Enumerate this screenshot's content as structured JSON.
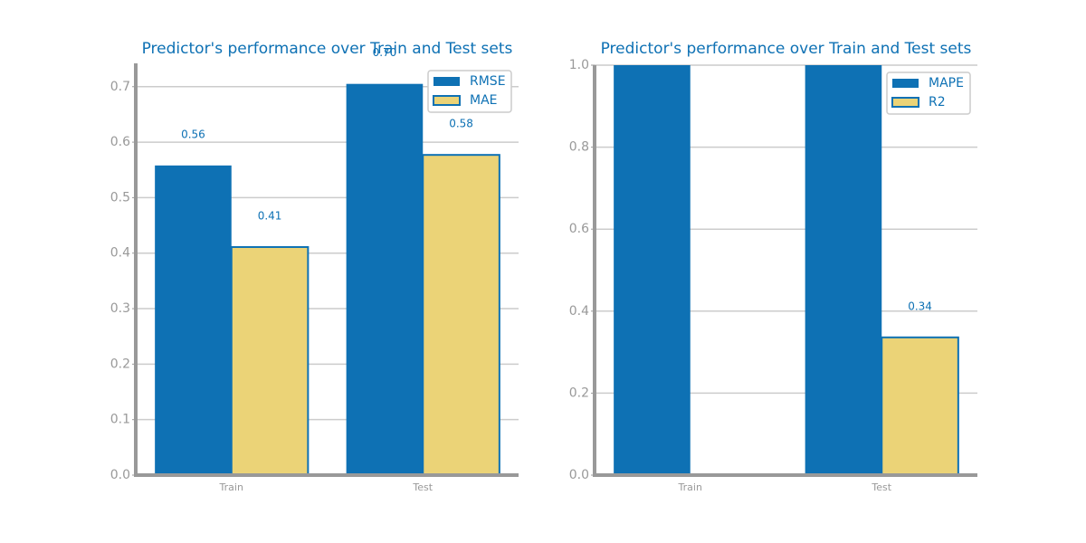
{
  "chart_data": [
    {
      "type": "bar",
      "title": "Predictor's performance over Train and Test sets",
      "categories": [
        "Train",
        "Test"
      ],
      "series": [
        {
          "name": "RMSE",
          "color": "#0e71b4",
          "values": [
            0.558,
            0.705
          ],
          "value_labels": [
            "0.56",
            "0.70"
          ]
        },
        {
          "name": "MAE",
          "color": "#ebd377",
          "values": [
            0.411,
            0.577
          ],
          "value_labels": [
            "0.41",
            "0.58"
          ]
        }
      ],
      "ylim": [
        0,
        0.742
      ],
      "yticks": [
        {
          "value": 0,
          "label": "0.0"
        },
        0.1,
        0.2,
        0.3,
        0.4,
        0.5,
        0.6,
        0.7
      ],
      "grid": true,
      "legend": "upper right"
    },
    {
      "type": "bar",
      "title": "Predictor's performance over Train and Test sets",
      "categories": [
        "Train",
        "Test"
      ],
      "series": [
        {
          "name": "MAPE",
          "color": "#0e71b4",
          "values": [
            1,
            1
          ],
          "value_labels": [
            null,
            null
          ]
        },
        {
          "name": "R2",
          "color": "#ebd377",
          "values": [
            null,
            0.336
          ],
          "value_labels": [
            null,
            "0.34"
          ]
        }
      ],
      "ylim": [
        0,
        1
      ],
      "yticks": [
        {
          "value": 0,
          "label": "0.0"
        },
        0.2,
        0.4,
        0.6,
        0.8,
        {
          "value": 1,
          "label": "1.0"
        }
      ],
      "grid": true,
      "legend": "upper right"
    }
  ]
}
